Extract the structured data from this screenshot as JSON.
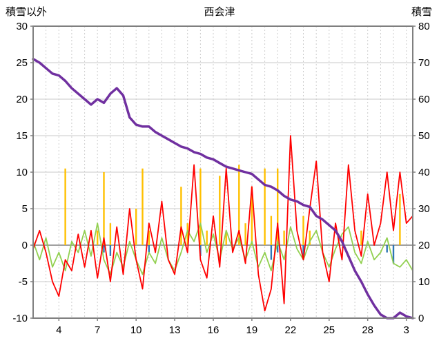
{
  "header": {
    "left_axis_title": "積雪以外",
    "chart_title": "西会津",
    "right_axis_title": "積雪"
  },
  "chart_data": {
    "type": "line",
    "title": "西会津",
    "left_axis": {
      "label": "積雪以外",
      "min": -10,
      "max": 30,
      "tick_step": 5,
      "ticks": [
        30,
        25,
        20,
        15,
        10,
        5,
        0,
        -5,
        -10
      ]
    },
    "right_axis": {
      "label": "積雪",
      "min": 0,
      "max": 80,
      "tick_step": 10,
      "ticks": [
        80,
        70,
        60,
        50,
        40,
        30,
        20,
        10,
        0
      ]
    },
    "x_axis": {
      "min": 0,
      "max": 29.5,
      "start": 0,
      "step": 0.5,
      "tick_labels": [
        "4",
        "7",
        "10",
        "13",
        "16",
        "19",
        "22",
        "25",
        "28",
        "3"
      ],
      "label_days": [
        2,
        5,
        8,
        11,
        14,
        17,
        20,
        23,
        26,
        29
      ],
      "grid_vertical": "dashed-daily",
      "grid_horizontal": "solid-every-5-left-units"
    },
    "legend": "none",
    "series": [
      {
        "id": "orange-bars",
        "axis": "left",
        "type": "bar",
        "color": "#FFC000",
        "width": 2.4,
        "values": [
          0,
          0,
          0,
          0,
          0,
          10.5,
          0,
          0,
          0,
          0,
          2,
          10,
          3,
          0,
          0,
          0,
          5,
          10.5,
          2,
          0,
          0,
          0,
          0,
          8,
          3,
          0,
          10.5,
          2,
          0,
          9.5,
          2,
          0,
          11,
          3,
          8,
          0,
          10.5,
          4,
          10.5,
          2,
          0,
          0,
          4,
          2,
          0,
          0,
          0,
          0,
          0,
          0,
          0,
          2,
          0,
          0,
          0,
          0,
          0,
          7,
          0,
          0
        ]
      },
      {
        "id": "blue-bars",
        "axis": "left",
        "type": "bar",
        "color": "#2E75B6",
        "width": 2.4,
        "values": [
          0,
          0,
          0,
          0,
          0,
          0,
          0,
          0,
          0,
          0,
          0,
          -1,
          -1.5,
          0,
          0,
          0,
          0,
          0,
          -1,
          0,
          0,
          0,
          0,
          0,
          0,
          0,
          -1.5,
          0,
          0,
          0,
          0,
          0,
          0,
          0,
          0,
          0,
          0,
          -2,
          -1,
          0,
          0,
          0,
          -1.5,
          0,
          0,
          0,
          0,
          0,
          0,
          0,
          0,
          0,
          0,
          0,
          0,
          -1,
          -2.5,
          0,
          0,
          0
        ]
      },
      {
        "id": "green-line",
        "axis": "left",
        "type": "line",
        "color": "#92D050",
        "width": 1.8,
        "values": [
          0.5,
          -2,
          1,
          -3,
          -1,
          -3.5,
          0.5,
          -1,
          2,
          -1.5,
          3,
          -2,
          -4,
          -1,
          -3,
          0.5,
          -2,
          -4,
          -1,
          -2.5,
          1,
          -2,
          -3.5,
          -1,
          2,
          0.5,
          3,
          -1,
          1.5,
          -2,
          2,
          -0.5,
          1,
          -2,
          0.5,
          -3,
          -1,
          -3.5,
          0.5,
          -2,
          2.5,
          -0.5,
          -2,
          0.5,
          2,
          -1,
          -3,
          -0.5,
          1.5,
          2.5,
          -1,
          -2.5,
          0.5,
          -2,
          -1,
          1,
          -2.5,
          -3,
          -2,
          -3.5
        ]
      },
      {
        "id": "red-line",
        "axis": "left",
        "type": "line",
        "color": "#FF0000",
        "width": 1.8,
        "values": [
          -0.5,
          2,
          -1,
          -5,
          -7,
          -2,
          -3.5,
          1.5,
          -3,
          2,
          -4.5,
          1,
          -5,
          2.5,
          -4,
          5,
          -2,
          -6,
          3,
          -1,
          6,
          -2,
          -4,
          2.5,
          -1,
          11,
          -2,
          -4.5,
          4,
          -3,
          10.5,
          -1,
          2,
          -2.5,
          8,
          -4,
          -9,
          -6,
          3,
          -8,
          15,
          2,
          -2,
          5,
          11.5,
          -1,
          -5,
          3,
          -2,
          11,
          2,
          -1.5,
          7,
          0,
          3,
          10,
          2,
          10,
          3,
          4
        ]
      },
      {
        "id": "積雪",
        "axis": "right",
        "type": "line",
        "color": "#7030A0",
        "width": 3.5,
        "values": [
          71,
          70,
          68.5,
          67,
          66.5,
          65,
          63,
          61.5,
          60,
          58.5,
          60,
          59,
          61.5,
          63,
          61,
          55,
          53,
          52.5,
          52.5,
          51,
          50,
          49,
          48,
          47,
          46.5,
          45.5,
          45,
          44,
          43.5,
          42.5,
          41.5,
          41,
          40.5,
          40,
          39.5,
          38,
          36.5,
          36,
          35,
          33.5,
          32.5,
          32,
          31,
          30.5,
          28,
          27,
          25.5,
          24,
          21,
          17,
          13,
          10,
          6.5,
          3.5,
          1,
          0,
          0,
          1.5,
          0.5,
          0
        ]
      }
    ]
  }
}
